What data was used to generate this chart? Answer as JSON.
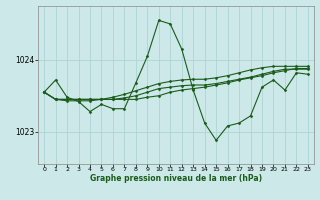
{
  "title": "Graphe pression niveau de la mer (hPa)",
  "background_color": "#cce8e8",
  "grid_color": "#aed4d4",
  "line_color": "#1a5c1a",
  "marker_color": "#1a5c1a",
  "xlim": [
    -0.5,
    23.5
  ],
  "ylim": [
    1022.55,
    1024.75
  ],
  "yticks": [
    1023,
    1024
  ],
  "xticks": [
    0,
    1,
    2,
    3,
    4,
    5,
    6,
    7,
    8,
    9,
    10,
    11,
    12,
    13,
    14,
    15,
    16,
    17,
    18,
    19,
    20,
    21,
    22,
    23
  ],
  "series": [
    [
      1023.55,
      1023.72,
      1023.48,
      1023.42,
      1023.28,
      1023.38,
      1023.32,
      1023.32,
      1023.68,
      1024.05,
      1024.55,
      1024.5,
      1024.15,
      1023.58,
      1023.12,
      1022.88,
      1023.08,
      1023.12,
      1023.22,
      1023.62,
      1023.72,
      1023.58,
      1023.82,
      1023.8
    ],
    [
      1023.55,
      1023.45,
      1023.45,
      1023.45,
      1023.45,
      1023.45,
      1023.45,
      1023.45,
      1023.45,
      1023.48,
      1023.5,
      1023.55,
      1023.58,
      1023.6,
      1023.62,
      1023.65,
      1023.68,
      1023.72,
      1023.75,
      1023.78,
      1023.82,
      1023.85,
      1023.88,
      1023.88
    ],
    [
      1023.55,
      1023.45,
      1023.45,
      1023.45,
      1023.45,
      1023.45,
      1023.45,
      1023.47,
      1023.5,
      1023.55,
      1023.6,
      1023.62,
      1023.64,
      1023.65,
      1023.65,
      1023.67,
      1023.7,
      1023.73,
      1023.76,
      1023.8,
      1023.84,
      1023.87,
      1023.87,
      1023.87
    ],
    [
      1023.55,
      1023.45,
      1023.43,
      1023.43,
      1023.43,
      1023.45,
      1023.48,
      1023.52,
      1023.57,
      1023.62,
      1023.67,
      1023.7,
      1023.72,
      1023.73,
      1023.73,
      1023.75,
      1023.78,
      1023.82,
      1023.86,
      1023.89,
      1023.91,
      1023.91,
      1023.91,
      1023.91
    ]
  ]
}
